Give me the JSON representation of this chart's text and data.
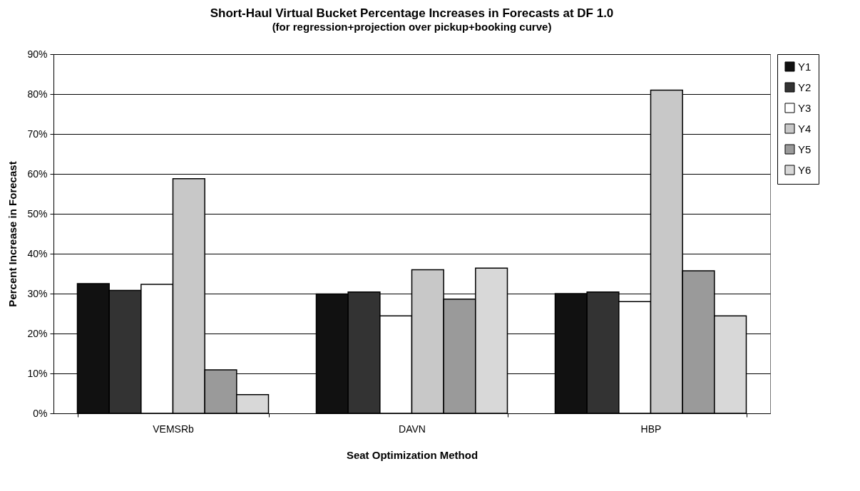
{
  "chart_data": {
    "type": "bar",
    "title": "Short-Haul Virtual Bucket Percentage Increases in Forecasts at DF 1.0",
    "subtitle": "(for regression+projection over pickup+booking curve)",
    "xlabel": "Seat Optimization Method",
    "ylabel": "Percent Increase in Forecast",
    "categories": [
      "VEMSRb",
      "DAVN",
      "HBP"
    ],
    "series": [
      {
        "name": "Y1",
        "color": "#111111",
        "values": [
          32.5,
          29.9,
          30.0
        ]
      },
      {
        "name": "Y2",
        "color": "#333333",
        "values": [
          30.8,
          30.4,
          30.4
        ]
      },
      {
        "name": "Y3",
        "color": "#ffffff",
        "values": [
          32.3,
          24.4,
          28.0
        ]
      },
      {
        "name": "Y4",
        "color": "#c8c8c8",
        "values": [
          58.8,
          36.0,
          81.0
        ]
      },
      {
        "name": "Y5",
        "color": "#9a9a9a",
        "values": [
          10.9,
          28.6,
          35.7
        ]
      },
      {
        "name": "Y6",
        "color": "#d8d8d8",
        "values": [
          4.7,
          36.4,
          24.4
        ]
      }
    ],
    "ylim": [
      0,
      90
    ],
    "yticks": [
      {
        "value": 0,
        "label": "0%"
      },
      {
        "value": 10,
        "label": "10%"
      },
      {
        "value": 20,
        "label": "20%"
      },
      {
        "value": 30,
        "label": "30%"
      },
      {
        "value": 40,
        "label": "40%"
      },
      {
        "value": 50,
        "label": "50%"
      },
      {
        "value": 60,
        "label": "60%"
      },
      {
        "value": 70,
        "label": "70%"
      },
      {
        "value": 80,
        "label": "80%"
      },
      {
        "value": 90,
        "label": "90%"
      }
    ],
    "grid": "y",
    "legend": "right"
  }
}
